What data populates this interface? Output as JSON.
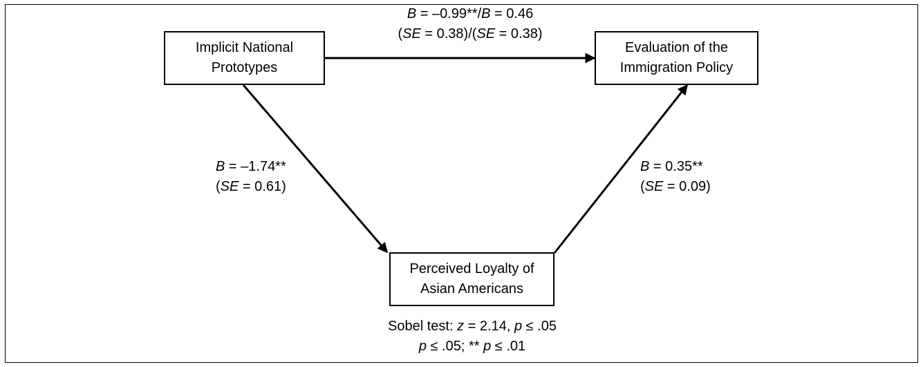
{
  "nodes": {
    "implicit": {
      "line1": "Implicit National",
      "line2": "Prototypes"
    },
    "evaluation": {
      "line1": "Evaluation of the",
      "line2": "Immigration Policy"
    },
    "loyalty": {
      "line1": "Perceived Loyalty of",
      "line2": "Asian Americans"
    }
  },
  "paths": {
    "top": {
      "line1": {
        "b1": "B",
        "v1": " = –0.99**/",
        "b2": "B",
        "v2": " = 0.46"
      },
      "line2": {
        "p1": "(",
        "se1": "SE",
        "v1": " = 0.38)/(",
        "se2": "SE",
        "v2": " = 0.38)"
      }
    },
    "left": {
      "line1": {
        "b": "B",
        "v": " = –1.74**"
      },
      "line2": {
        "p": "(",
        "se": "SE",
        "v": " = 0.61)"
      }
    },
    "right": {
      "line1": {
        "b": "B",
        "v": " = 0.35**"
      },
      "line2": {
        "p": "(",
        "se": "SE",
        "v": " = 0.09)"
      }
    }
  },
  "footer": {
    "sobel": {
      "prefix": "Sobel test: ",
      "z": "z",
      "zval": " = 2.14, ",
      "p": "p",
      "pval": " ≤ .05"
    },
    "sig": {
      "p1": "p",
      "v1": " ≤ .05; ** ",
      "p2": "p",
      "v2": " ≤ .01"
    }
  }
}
